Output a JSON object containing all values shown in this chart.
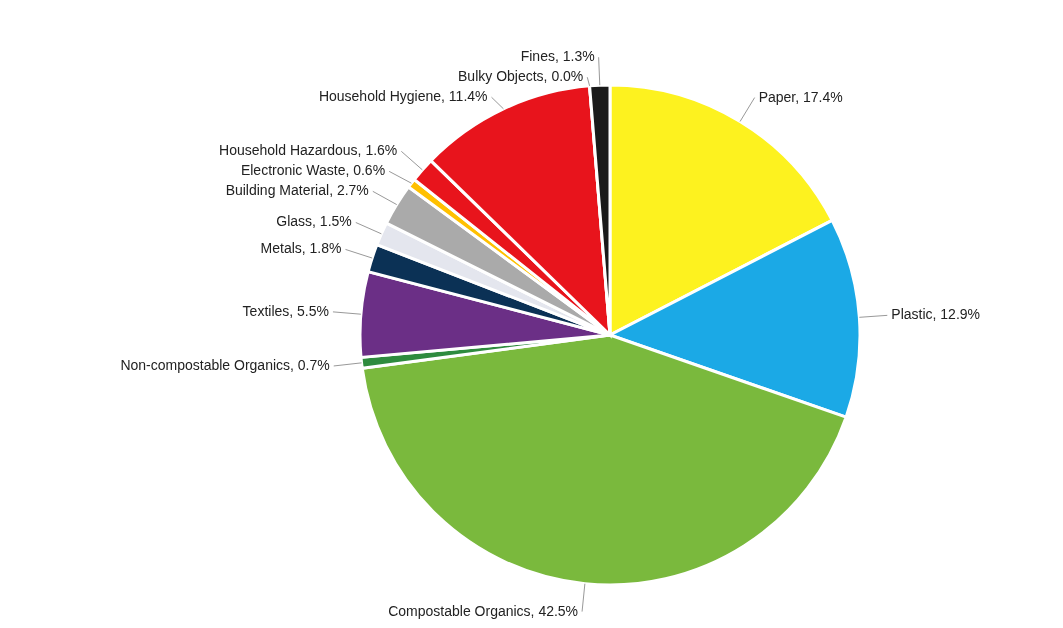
{
  "chart_data": {
    "type": "pie",
    "categories": [
      "Paper",
      "Plastic",
      "Compostable Organics",
      "Non-compostable Organics",
      "Textiles",
      "Metals",
      "Glass",
      "Building Material",
      "Electronic Waste",
      "Household Hazardous",
      "Household Hygiene",
      "Bulky Objects",
      "Fines"
    ],
    "values": [
      17.4,
      12.9,
      42.5,
      0.7,
      5.5,
      1.8,
      1.5,
      2.7,
      0.6,
      1.6,
      11.4,
      0.0,
      1.3
    ],
    "value_labels": [
      "17.4%",
      "12.9%",
      "42.5%",
      "0.7%",
      "5.5%",
      "1.8%",
      "1.5%",
      "2.7%",
      "0.6%",
      "1.6%",
      "11.4%",
      "0.0%",
      "1.3%"
    ],
    "colors": [
      "#fdf21f",
      "#1ba9e6",
      "#7ab93d",
      "#2e8b3e",
      "#6b2f86",
      "#0b3155",
      "#e4e6ee",
      "#aaaaaa",
      "#ffc000",
      "#e8141c",
      "#e8141c",
      "#f4f4f4",
      "#1a1a1a"
    ]
  }
}
